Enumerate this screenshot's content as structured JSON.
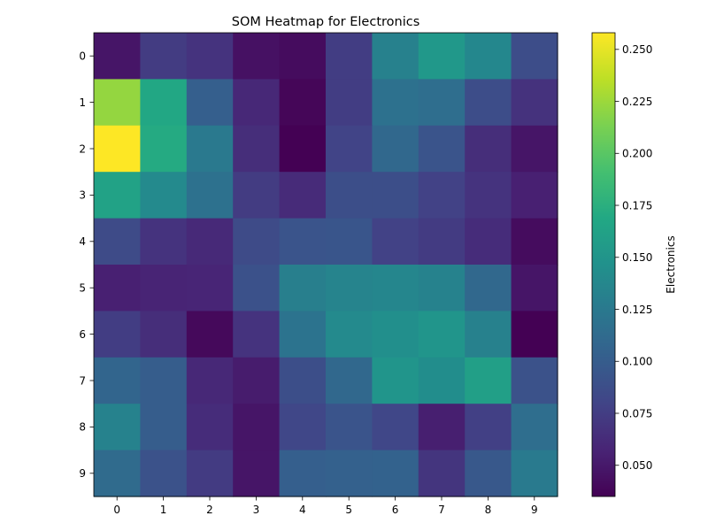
{
  "chart_data": {
    "type": "heatmap",
    "title": "SOM Heatmap for Electronics",
    "xlabel": "",
    "ylabel": "",
    "x_ticks": [
      "0",
      "1",
      "2",
      "3",
      "4",
      "5",
      "6",
      "7",
      "8",
      "9"
    ],
    "y_ticks": [
      "0",
      "1",
      "2",
      "3",
      "4",
      "5",
      "6",
      "7",
      "8",
      "9"
    ],
    "colorbar": {
      "label": "Electronics",
      "min": 0.035,
      "max": 0.258,
      "ticks": [
        "0.050",
        "0.075",
        "0.100",
        "0.125",
        "0.150",
        "0.175",
        "0.200",
        "0.225",
        "0.250"
      ],
      "tick_values": [
        0.05,
        0.075,
        0.1,
        0.125,
        0.15,
        0.175,
        0.2,
        0.225,
        0.25
      ],
      "colormap": "viridis"
    },
    "values": [
      [
        0.048,
        0.074,
        0.068,
        0.045,
        0.042,
        0.075,
        0.132,
        0.153,
        0.138,
        0.087
      ],
      [
        0.222,
        0.168,
        0.102,
        0.06,
        0.038,
        0.075,
        0.118,
        0.115,
        0.087,
        0.067
      ],
      [
        0.258,
        0.171,
        0.125,
        0.064,
        0.035,
        0.08,
        0.11,
        0.093,
        0.064,
        0.048
      ],
      [
        0.163,
        0.14,
        0.118,
        0.074,
        0.062,
        0.088,
        0.088,
        0.078,
        0.068,
        0.055
      ],
      [
        0.085,
        0.068,
        0.061,
        0.085,
        0.093,
        0.094,
        0.078,
        0.073,
        0.063,
        0.042
      ],
      [
        0.055,
        0.057,
        0.058,
        0.09,
        0.13,
        0.135,
        0.137,
        0.133,
        0.11,
        0.048
      ],
      [
        0.075,
        0.064,
        0.04,
        0.068,
        0.12,
        0.14,
        0.145,
        0.15,
        0.132,
        0.035
      ],
      [
        0.107,
        0.1,
        0.06,
        0.052,
        0.088,
        0.11,
        0.15,
        0.143,
        0.16,
        0.091
      ],
      [
        0.133,
        0.1,
        0.063,
        0.048,
        0.082,
        0.093,
        0.082,
        0.054,
        0.077,
        0.115
      ],
      [
        0.113,
        0.091,
        0.073,
        0.048,
        0.102,
        0.104,
        0.105,
        0.069,
        0.096,
        0.126
      ]
    ]
  }
}
